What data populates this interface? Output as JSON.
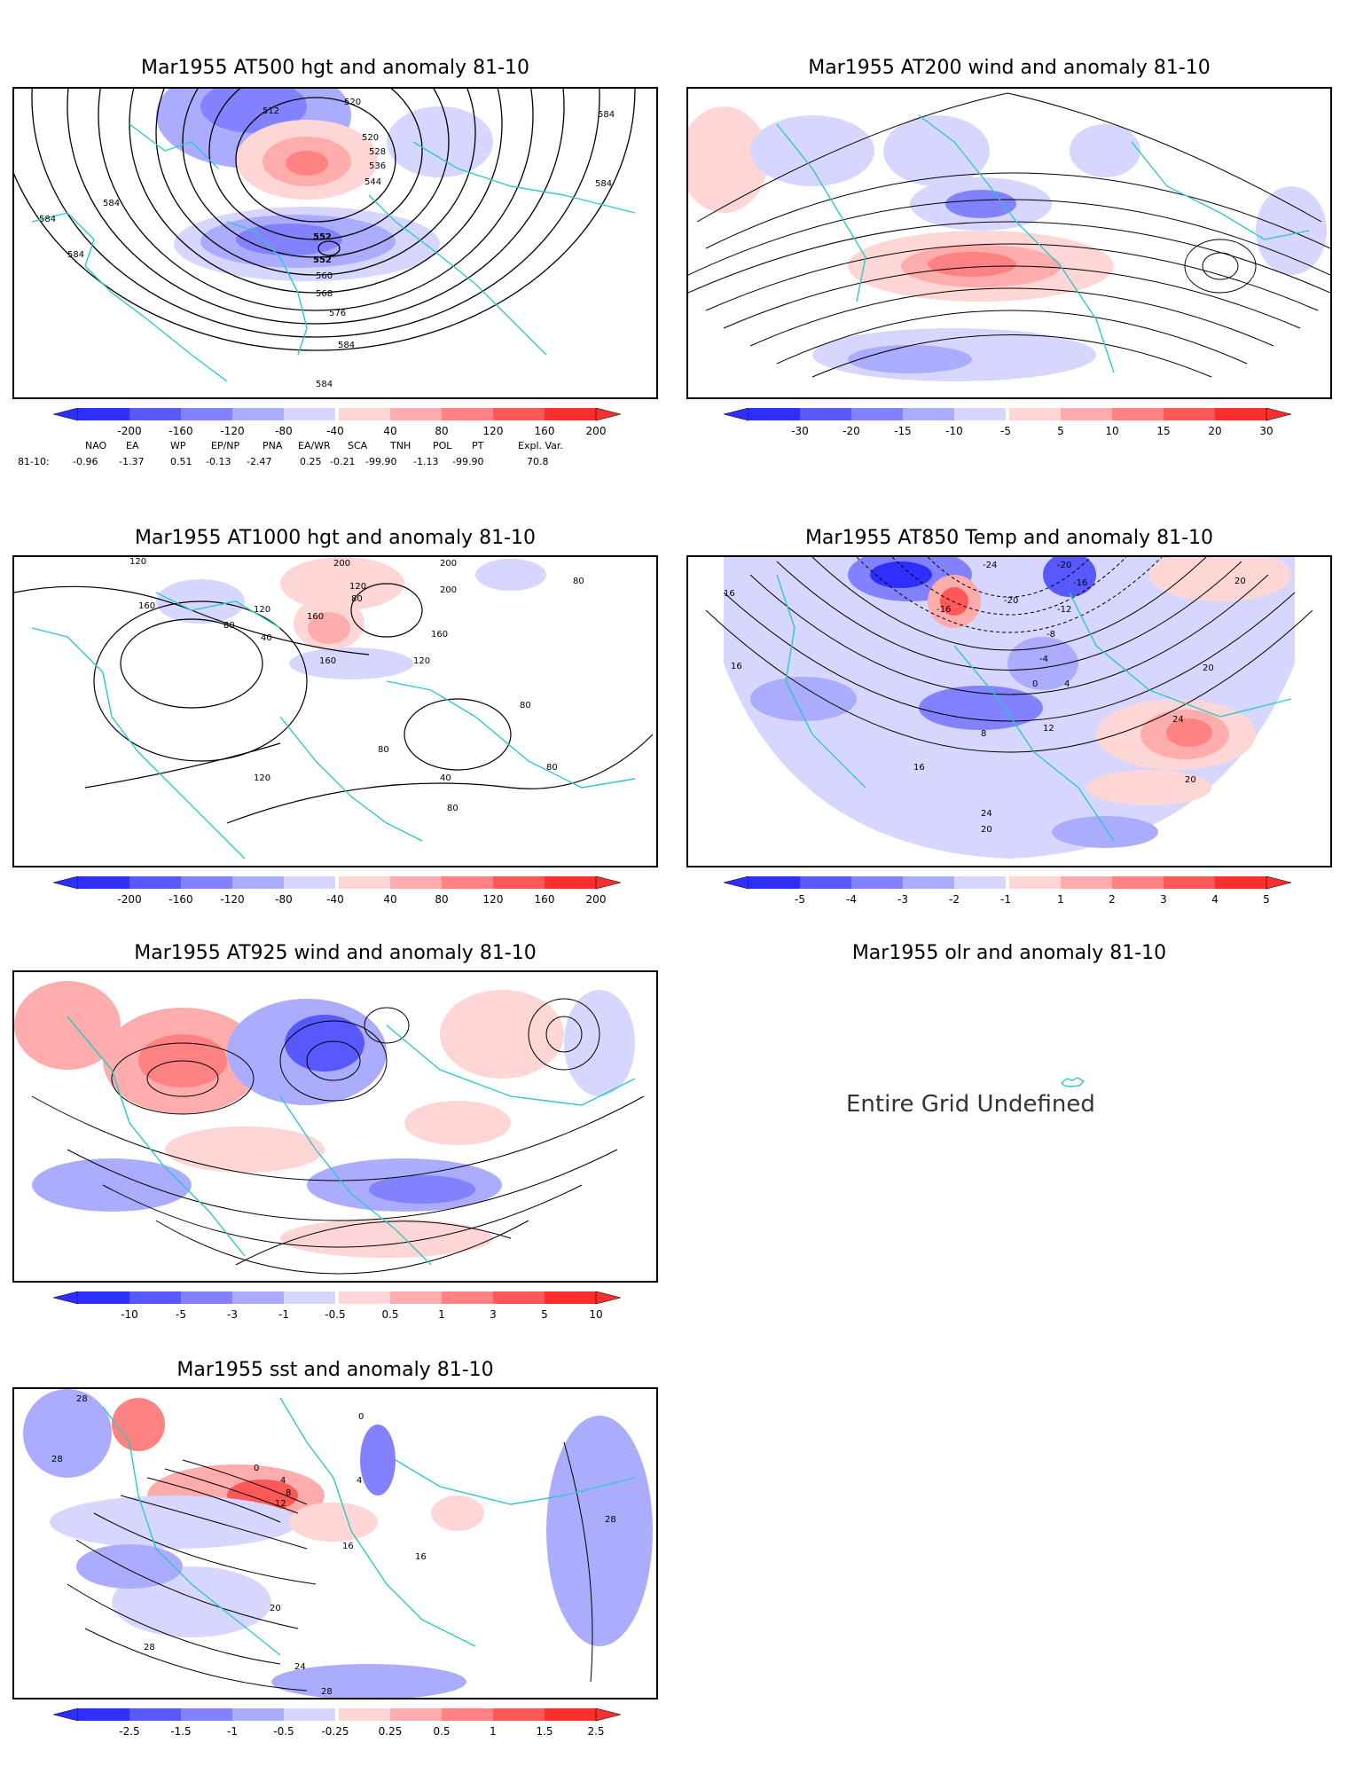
{
  "colors": {
    "blue_scale": [
      "#2e2eff",
      "#5858ff",
      "#8282ff",
      "#acacff",
      "#d6d6ff"
    ],
    "red_scale": [
      "#ffd6d6",
      "#ffacac",
      "#ff8282",
      "#ff5858",
      "#ff2e2e"
    ],
    "coast": "#2ec8c8",
    "contour": "#000000"
  },
  "panels": [
    {
      "id": "z500",
      "title": "Mar1955 AT500 hgt and anomaly 81-10",
      "colorbar_labels": [
        "-200",
        "-160",
        "-120",
        "-80",
        "-40",
        "40",
        "80",
        "120",
        "160",
        "200"
      ],
      "contour_labels": [
        "512",
        "520",
        "520",
        "528",
        "536",
        "544",
        "552",
        "552",
        "560",
        "568",
        "576",
        "584",
        "584",
        "584",
        "584",
        "584",
        "584",
        "584"
      ],
      "index_header": [
        "NAO",
        "EA",
        "WP",
        "EP/NP",
        "PNA",
        "EA/WR",
        "SCA",
        "TNH",
        "POL",
        "PT",
        "Expl. Var."
      ],
      "index_row_label": "81-10:",
      "index_values": [
        "-0.96",
        "-1.37",
        "0.51",
        "-0.13",
        "-2.47",
        "0.25",
        "-0.21",
        "-99.90",
        "-1.13",
        "-99.90",
        "70.8"
      ]
    },
    {
      "id": "w200",
      "title": "Mar1955 AT200 wind and anomaly 81-10",
      "colorbar_labels": [
        "-30",
        "-20",
        "-15",
        "-10",
        "-5",
        "5",
        "10",
        "15",
        "20",
        "30"
      ]
    },
    {
      "id": "z1000",
      "title": "Mar1955 AT1000 hgt and anomaly 81-10",
      "colorbar_labels": [
        "-200",
        "-160",
        "-120",
        "-80",
        "-40",
        "40",
        "80",
        "120",
        "160",
        "200"
      ],
      "contour_labels": [
        "120",
        "120",
        "80",
        "40",
        "160",
        "160",
        "200",
        "200",
        "120",
        "80",
        "200",
        "160",
        "120",
        "80",
        "160",
        "120",
        "80",
        "40",
        "80",
        "80",
        "80"
      ]
    },
    {
      "id": "t850",
      "title": "Mar1955 AT850 Temp and anomaly 81-10",
      "colorbar_labels": [
        "-5",
        "-4",
        "-3",
        "-2",
        "-1",
        "1",
        "2",
        "3",
        "4",
        "5"
      ],
      "contour_labels": [
        "-24",
        "-20",
        "-20",
        "-16",
        "-16",
        "-12",
        "-8",
        "-4",
        "0",
        "4",
        "8",
        "12",
        "16",
        "16",
        "16",
        "20",
        "20",
        "20",
        "24",
        "24",
        "20"
      ]
    },
    {
      "id": "w925",
      "title": "Mar1955 AT925 wind and anomaly 81-10",
      "colorbar_labels": [
        "-10",
        "-5",
        "-3",
        "-1",
        "-0.5",
        "0.5",
        "1",
        "3",
        "5",
        "10"
      ]
    },
    {
      "id": "olr",
      "title": "Mar1955 olr and anomaly 81-10",
      "message": "Entire Grid Undefined"
    },
    {
      "id": "sst",
      "title": "Mar1955 sst and anomaly 81-10",
      "colorbar_labels": [
        "-2.5",
        "-1.5",
        "-1",
        "-0.5",
        "-0.25",
        "0.25",
        "0.5",
        "1",
        "1.5",
        "2.5"
      ],
      "contour_labels": [
        "28",
        "28",
        "0",
        "0",
        "4",
        "8",
        "12",
        "4",
        "16",
        "16",
        "20",
        "24",
        "28",
        "28",
        "28"
      ]
    }
  ]
}
